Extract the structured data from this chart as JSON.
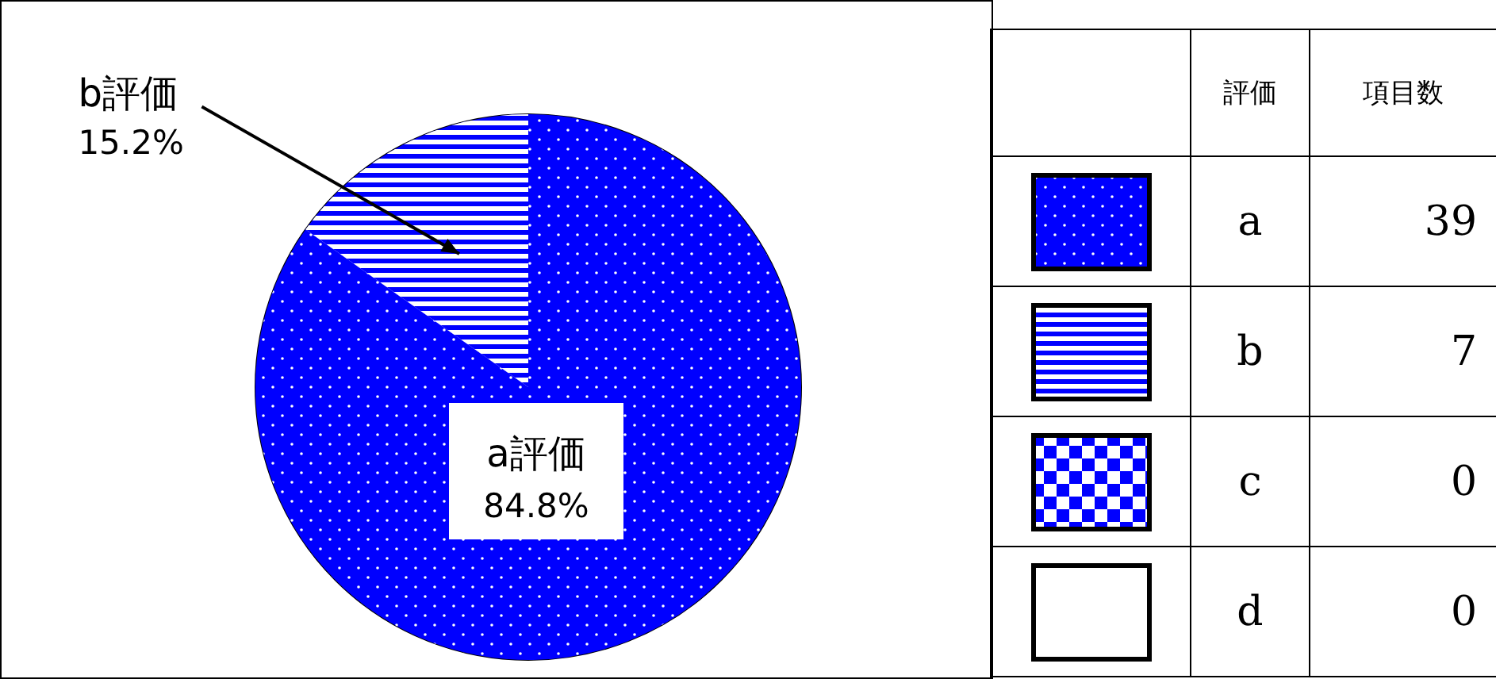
{
  "chart_data": [
    {
      "type": "pie",
      "categories": [
        "a評価",
        "b評価"
      ],
      "values": [
        84.8,
        15.2
      ],
      "colors": [
        "#0000ff",
        "#0000ff"
      ],
      "value_labels": [
        "84.8%",
        "15.2%"
      ]
    },
    {
      "type": "other",
      "categories": [
        "a",
        "b",
        "c",
        "d"
      ],
      "values": [
        39,
        7,
        0,
        0
      ],
      "colors": [
        "#0000ff",
        "#0000ff",
        "#0000ff",
        "#ffffff"
      ],
      "data_labels": true,
      "xlabel": "評価",
      "ylabel": "項目数"
    }
  ]
}
